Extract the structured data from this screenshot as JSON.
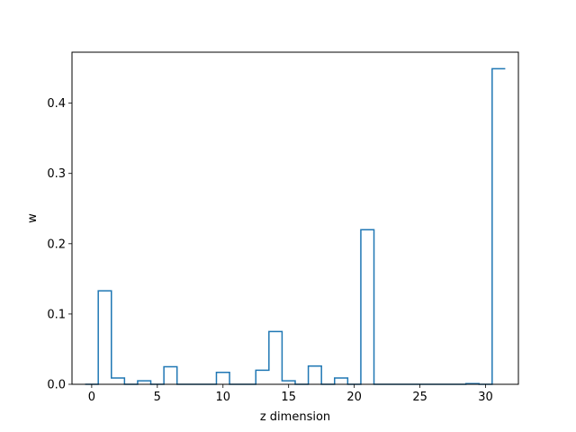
{
  "chart_data": {
    "type": "bar",
    "style": "step",
    "title": "",
    "xlabel": "z dimension",
    "ylabel": "w",
    "xlim": [
      -1.5,
      32.5
    ],
    "ylim": [
      0,
      0.4725
    ],
    "xticks": [
      0,
      5,
      10,
      15,
      20,
      25,
      30
    ],
    "yticks": [
      0.0,
      0.1,
      0.2,
      0.3,
      0.4
    ],
    "ytick_labels": [
      "0.0",
      "0.1",
      "0.2",
      "0.3",
      "0.4"
    ],
    "grid": false,
    "line_color": "#1f77b4",
    "x": [
      0,
      1,
      2,
      3,
      4,
      5,
      6,
      7,
      8,
      9,
      10,
      11,
      12,
      13,
      14,
      15,
      16,
      17,
      18,
      19,
      20,
      21,
      22,
      23,
      24,
      25,
      26,
      27,
      28,
      29,
      30,
      31
    ],
    "values": [
      0.0,
      0.133,
      0.009,
      0.0,
      0.005,
      0.0,
      0.025,
      0.0,
      0.0,
      0.0,
      0.017,
      0.0,
      0.0,
      0.02,
      0.075,
      0.005,
      0.0,
      0.026,
      0.0,
      0.009,
      0.0,
      0.22,
      0.0,
      0.0,
      0.0,
      0.0,
      0.0,
      0.0,
      0.0,
      0.001,
      0.0,
      0.449
    ]
  }
}
